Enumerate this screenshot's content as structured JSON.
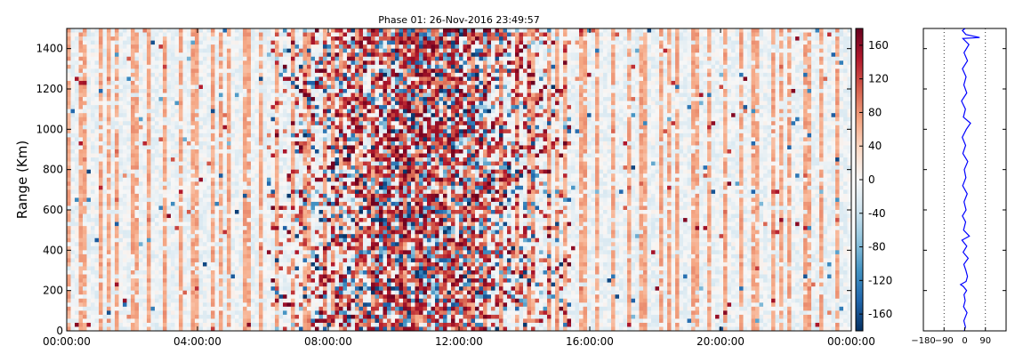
{
  "chart_data": [
    {
      "type": "heatmap",
      "title": "Phase 01: 26-Nov-2016 23:49:57",
      "xlabel": "",
      "ylabel": "Range (Km)",
      "x_ticks": [
        "00:00:00",
        "04:00:00",
        "08:00:00",
        "12:00:00",
        "16:00:00",
        "20:00:00",
        "00:00:00"
      ],
      "x_range_hours": [
        0,
        24
      ],
      "y_ticks": [
        0,
        200,
        400,
        600,
        800,
        1000,
        1200,
        1400
      ],
      "ylim": [
        0,
        1500
      ],
      "colormap": "RdBu_r",
      "colorbar": {
        "ticks": [
          160,
          120,
          80,
          40,
          0,
          -40,
          -80,
          -120,
          -160
        ],
        "range": [
          -180,
          180
        ],
        "colors": [
          "#053061",
          "#2166ac",
          "#4393c3",
          "#92c5de",
          "#d1e5f0",
          "#f7f7f7",
          "#fddbc7",
          "#f4a582",
          "#d6604d",
          "#b2182b",
          "#67001f"
        ]
      },
      "grid": false
    },
    {
      "type": "line",
      "title": "",
      "x_ticks": [
        "−180",
        "−90",
        "0",
        "90"
      ],
      "xlim": [
        -180,
        180
      ],
      "ylim": [
        0,
        1500
      ],
      "reference_lines_x": [
        -90,
        90
      ],
      "series_color": "#0000ff",
      "profile": [
        [
          -2,
          0
        ],
        [
          3,
          20
        ],
        [
          -4,
          50
        ],
        [
          10,
          90
        ],
        [
          -5,
          120
        ],
        [
          2,
          150
        ],
        [
          -3,
          180
        ],
        [
          8,
          200
        ],
        [
          -6,
          220
        ],
        [
          -18,
          230
        ],
        [
          6,
          245
        ],
        [
          12,
          270
        ],
        [
          5,
          300
        ],
        [
          -4,
          330
        ],
        [
          15,
          360
        ],
        [
          -7,
          390
        ],
        [
          9,
          420
        ],
        [
          -12,
          450
        ],
        [
          20,
          470
        ],
        [
          -5,
          500
        ],
        [
          4,
          540
        ],
        [
          -10,
          570
        ],
        [
          6,
          600
        ],
        [
          -3,
          640
        ],
        [
          11,
          680
        ],
        [
          -9,
          720
        ],
        [
          5,
          760
        ],
        [
          -2,
          800
        ],
        [
          13,
          840
        ],
        [
          -8,
          880
        ],
        [
          4,
          920
        ],
        [
          -11,
          960
        ],
        [
          7,
          1000
        ],
        [
          25,
          1030
        ],
        [
          -6,
          1060
        ],
        [
          3,
          1100
        ],
        [
          -14,
          1140
        ],
        [
          9,
          1180
        ],
        [
          -4,
          1220
        ],
        [
          6,
          1260
        ],
        [
          -10,
          1300
        ],
        [
          12,
          1340
        ],
        [
          -3,
          1380
        ],
        [
          18,
          1420
        ],
        [
          -8,
          1450
        ],
        [
          65,
          1455
        ],
        [
          5,
          1470
        ],
        [
          -10,
          1490
        ],
        [
          2,
          1500
        ]
      ]
    }
  ]
}
